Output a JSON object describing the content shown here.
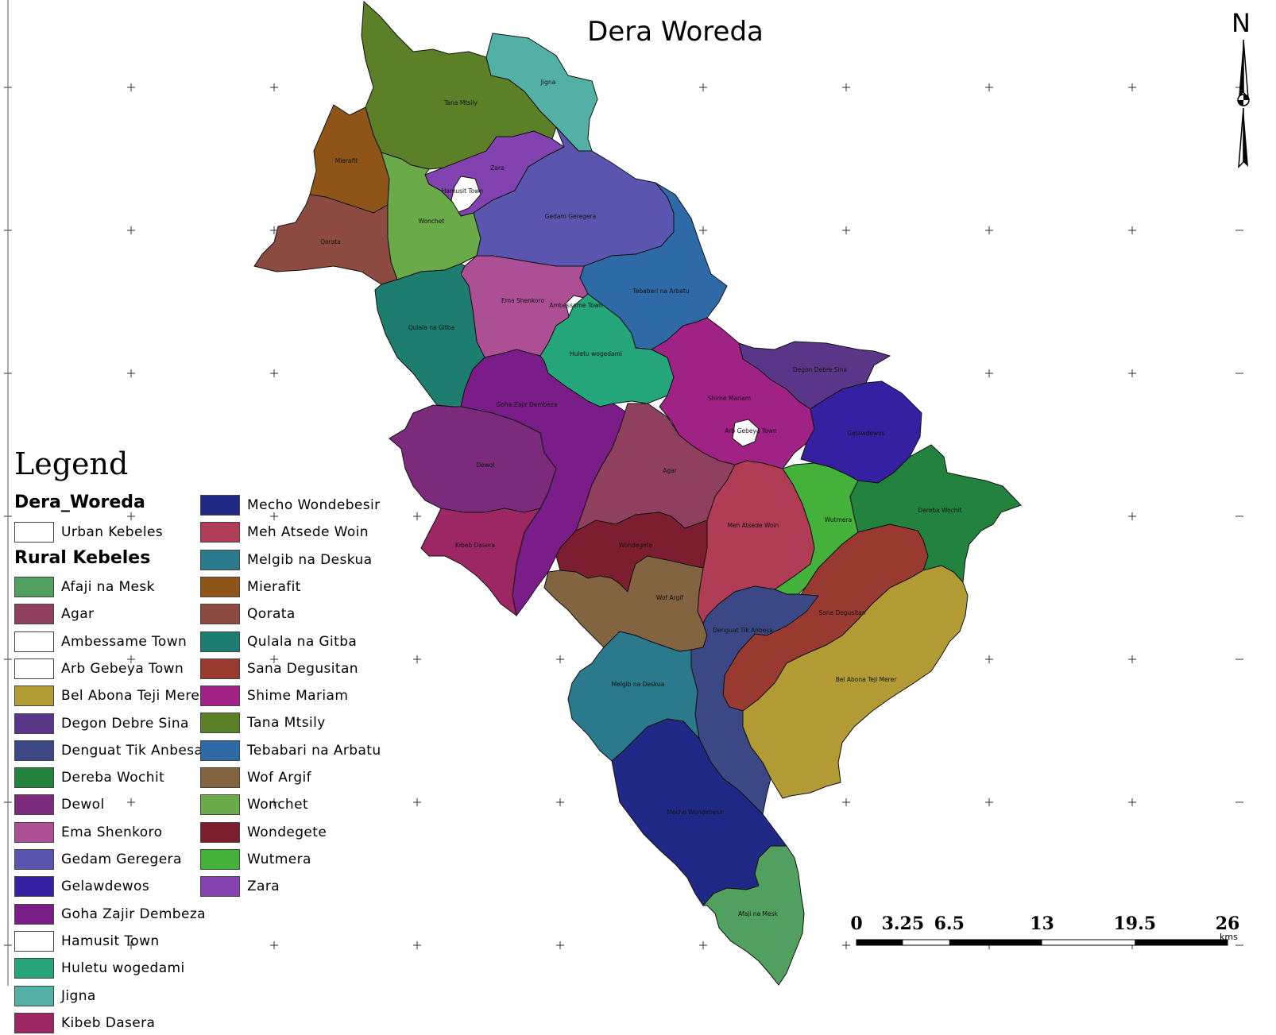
{
  "map": {
    "title": "Dera Woreda",
    "north_label": "N",
    "kebeles": [
      {
        "id": "tana-mtsily",
        "name": "Tana Mtsily",
        "color": "#5b8028"
      },
      {
        "id": "jigna",
        "name": "Jigna",
        "color": "#52b0a4"
      },
      {
        "id": "mierafit",
        "name": "Mierafit",
        "color": "#8f5518"
      },
      {
        "id": "zara",
        "name": "Zara",
        "color": "#8242b0"
      },
      {
        "id": "hamusit-town",
        "name": "Hamusit Town",
        "color": "#ffffff"
      },
      {
        "id": "wonchet",
        "name": "Wonchet",
        "color": "#6aaa48"
      },
      {
        "id": "qorata",
        "name": "Qorata",
        "color": "#8c4a40"
      },
      {
        "id": "gedam-geregera",
        "name": "Gedam Geregera",
        "color": "#5a56b0"
      },
      {
        "id": "tebabari-na-arbatu",
        "name": "Tebabari na Arbatu",
        "color": "#2e6aa6"
      },
      {
        "id": "ema-shenkoro",
        "name": "Ema Shenkoro",
        "color": "#ad4f94"
      },
      {
        "id": "ambessame-town",
        "name": "Ambessame Town",
        "color": "#ffffff"
      },
      {
        "id": "qulala-na-gitba",
        "name": "Qulala na Gitba",
        "color": "#1d7d6e"
      },
      {
        "id": "huletu-wogedami",
        "name": "Huletu wogedami",
        "color": "#25a57a"
      },
      {
        "id": "degon-debre-sina",
        "name": "Degon Debre Sina",
        "color": "#5a3688"
      },
      {
        "id": "shime-mariam",
        "name": "Shime Mariam",
        "color": "#a02284"
      },
      {
        "id": "arb-gebeya-town",
        "name": "Arb Gebeya Town",
        "color": "#ffffff"
      },
      {
        "id": "goha-zajir-dembeza",
        "name": "Goha Zajir Dembeza",
        "color": "#7a1d88"
      },
      {
        "id": "gelawdewos",
        "name": "Gelawdewos",
        "color": "#3420a0"
      },
      {
        "id": "dewol",
        "name": "Dewol",
        "color": "#7b2a7c"
      },
      {
        "id": "agar",
        "name": "Agar",
        "color": "#8f405e"
      },
      {
        "id": "wutmera",
        "name": "Wutmera",
        "color": "#44b23a"
      },
      {
        "id": "dereba-wochit",
        "name": "Dereba Wochit",
        "color": "#23823e"
      },
      {
        "id": "kibeb-dasera",
        "name": "Kibeb Dasera",
        "color": "#9c2762"
      },
      {
        "id": "meh-atsede-woin",
        "name": "Meh Atsede Woin",
        "color": "#b03c56"
      },
      {
        "id": "wondegete",
        "name": "Wondegete",
        "color": "#7c1e30"
      },
      {
        "id": "wof-argif",
        "name": "Wof Argif",
        "color": "#826440"
      },
      {
        "id": "sana-degusitan",
        "name": "Sana Degusitan",
        "color": "#983a30"
      },
      {
        "id": "denguat-tik-anbesa",
        "name": "Denguat Tik Anbesa",
        "color": "#3c4886"
      },
      {
        "id": "melgib-na-deskua",
        "name": "Melgib na Deskua",
        "color": "#2a7a8c"
      },
      {
        "id": "bel-abona-teji-merer",
        "name": "Bel Abona Teji Merer",
        "color": "#b29a34"
      },
      {
        "id": "mecho-wondebesir",
        "name": "Mecho Wondebesir",
        "color": "#202a86"
      },
      {
        "id": "afaji-na-mesk",
        "name": "Afaji na Mesk",
        "color": "#52a060"
      }
    ],
    "scale_bar": {
      "labels": [
        "0",
        "3.25",
        "6.5",
        "13",
        "19.5",
        "26"
      ],
      "unit": "kms"
    }
  },
  "legend": {
    "heading": "Legend",
    "layer_title": "Dera_Woreda",
    "urban_entry": {
      "label": "Urban Kebeles",
      "color": "#ffffff"
    },
    "group_title": "Rural Kebeles",
    "entries": [
      {
        "label": "Afaji na Mesk",
        "color": "#52a060"
      },
      {
        "label": "Agar",
        "color": "#8f405e"
      },
      {
        "label": "Ambessame Town",
        "color": "#ffffff"
      },
      {
        "label": "Arb Gebeya Town",
        "color": "#ffffff"
      },
      {
        "label": "Bel Abona Teji Merer",
        "color": "#b29a34"
      },
      {
        "label": "Degon Debre Sina",
        "color": "#5a3688"
      },
      {
        "label": "Denguat Tik Anbesa",
        "color": "#3c4886"
      },
      {
        "label": "Dereba Wochit",
        "color": "#23823e"
      },
      {
        "label": "Dewol",
        "color": "#7b2a7c"
      },
      {
        "label": "Ema Shenkoro",
        "color": "#ad4f94"
      },
      {
        "label": "Gedam Geregera",
        "color": "#5a56b0"
      },
      {
        "label": "Gelawdewos",
        "color": "#3420a0"
      },
      {
        "label": "Goha Zajir Dembeza",
        "color": "#7a1d88"
      },
      {
        "label": "Hamusit Town",
        "color": "#ffffff"
      },
      {
        "label": "Huletu wogedami",
        "color": "#25a57a"
      },
      {
        "label": "Jigna",
        "color": "#52b0a4"
      },
      {
        "label": "Kibeb Dasera",
        "color": "#9c2762"
      },
      {
        "label": "Mecho Wondebesir",
        "color": "#202a86"
      },
      {
        "label": "Meh Atsede Woin",
        "color": "#b03c56"
      },
      {
        "label": "Melgib na Deskua",
        "color": "#2a7a8c"
      },
      {
        "label": "Mierafit",
        "color": "#8f5518"
      },
      {
        "label": "Qorata",
        "color": "#8c4a40"
      },
      {
        "label": "Qulala na Gitba",
        "color": "#1d7d6e"
      },
      {
        "label": "Sana Degusitan",
        "color": "#983a30"
      },
      {
        "label": "Shime Mariam",
        "color": "#a02284"
      },
      {
        "label": "Tana Mtsily",
        "color": "#5b8028"
      },
      {
        "label": "Tebabari na Arbatu",
        "color": "#2e6aa6"
      },
      {
        "label": "Wof Argif",
        "color": "#826440"
      },
      {
        "label": "Wonchet",
        "color": "#6aaa48"
      },
      {
        "label": "Wondegete",
        "color": "#7c1e30"
      },
      {
        "label": "Wutmera",
        "color": "#44b23a"
      },
      {
        "label": "Zara",
        "color": "#8242b0"
      }
    ]
  }
}
